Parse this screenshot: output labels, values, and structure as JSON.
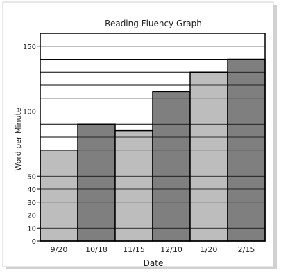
{
  "chart_data": {
    "type": "bar",
    "title": "Reading Fluency Graph",
    "xlabel": "Date",
    "ylabel": "Word per Minute",
    "categories": [
      "9/20",
      "10/18",
      "11/15",
      "12/10",
      "1/20",
      "2/15"
    ],
    "values": [
      70,
      90,
      85,
      115,
      130,
      140
    ],
    "bar_colors": [
      "#bdbdbd",
      "#7f7f7f",
      "#bdbdbd",
      "#7f7f7f",
      "#bdbdbd",
      "#7f7f7f"
    ],
    "ylim": [
      0,
      160
    ],
    "yticks": [
      0,
      10,
      20,
      30,
      40,
      50,
      100,
      150
    ],
    "ytick_labels": [
      "0",
      "10",
      "20",
      "30",
      "40",
      "50",
      "100",
      "150"
    ],
    "grid": true
  }
}
